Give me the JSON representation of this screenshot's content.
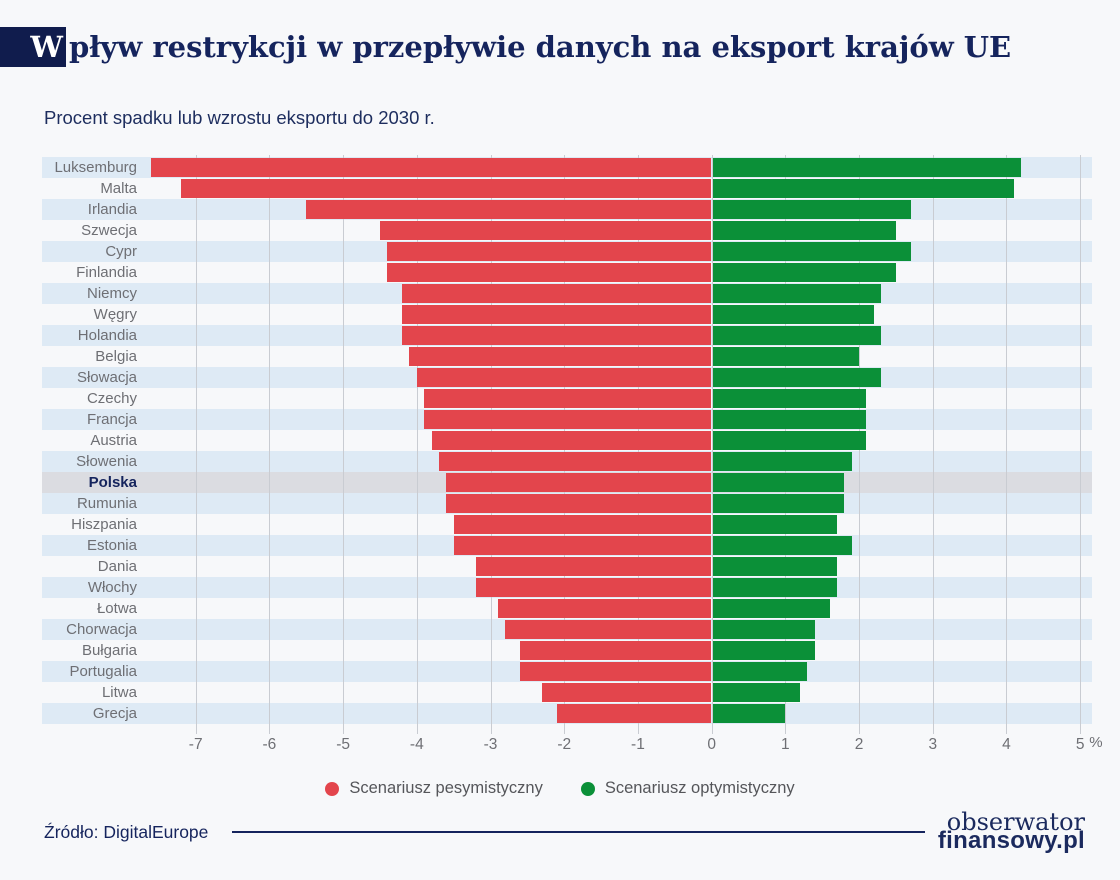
{
  "title": {
    "box_letter": "W",
    "rest": "pływ restrykcji w przepływie danych na eksport krajów UE"
  },
  "subtitle": "Procent spadku lub wzrostu eksportu do 2030 r.",
  "chart_data": {
    "type": "bar",
    "orientation": "horizontal-diverging",
    "title": "Wpływ restrykcji w przepływie danych na eksport krajów UE",
    "subtitle": "Procent spadku lub wzrostu eksportu do 2030 r.",
    "categories": [
      "Luksemburg",
      "Malta",
      "Irlandia",
      "Szwecja",
      "Cypr",
      "Finlandia",
      "Niemcy",
      "Węgry",
      "Holandia",
      "Belgia",
      "Słowacja",
      "Czechy",
      "Francja",
      "Austria",
      "Słowenia",
      "Polska",
      "Rumunia",
      "Hiszpania",
      "Estonia",
      "Dania",
      "Włochy",
      "Łotwa",
      "Chorwacja",
      "Bułgaria",
      "Portugalia",
      "Litwa",
      "Grecja"
    ],
    "series": [
      {
        "name": "Scenariusz pesymistyczny",
        "color": "#e3454c",
        "values": [
          -7.6,
          -7.2,
          -5.5,
          -4.5,
          -4.4,
          -4.4,
          -4.2,
          -4.2,
          -4.2,
          -4.1,
          -4.0,
          -3.9,
          -3.9,
          -3.8,
          -3.7,
          -3.6,
          -3.6,
          -3.5,
          -3.5,
          -3.2,
          -3.2,
          -2.9,
          -2.8,
          -2.6,
          -2.6,
          -2.3,
          -2.1
        ]
      },
      {
        "name": "Scenariusz optymistyczny",
        "color": "#0b9038",
        "values": [
          4.2,
          4.1,
          2.7,
          2.5,
          2.7,
          2.5,
          2.3,
          2.2,
          2.3,
          2.0,
          2.3,
          2.1,
          2.1,
          2.1,
          1.9,
          1.8,
          1.8,
          1.7,
          1.9,
          1.7,
          1.7,
          1.6,
          1.4,
          1.4,
          1.3,
          1.2,
          1.0
        ]
      }
    ],
    "xticks": [
      -7,
      -6,
      -5,
      -4,
      -3,
      -2,
      -1,
      0,
      1,
      2,
      3,
      4,
      5
    ],
    "x_axis_suffix": "%",
    "xlim": [
      -7.62,
      5.16
    ],
    "grid": true,
    "legend_position": "bottom",
    "highlighted_category": "Polska",
    "row_stripe_color": "#deeaf5",
    "highlight_row_color": "#dbdce1"
  },
  "legend": [
    {
      "label": "Scenariusz pesymistyczny",
      "color": "#e3454c"
    },
    {
      "label": "Scenariusz optymistyczny",
      "color": "#0b9038"
    }
  ],
  "footer": {
    "source": "Źródło: DigitalEurope",
    "logo_line1": "obserwator",
    "logo_line2": "finansowy.pl"
  },
  "colors": {
    "accent_navy": "#15245d",
    "pessimistic_red": "#e3454c",
    "optimistic_green": "#0b9038",
    "stripe_blue": "#deeaf5",
    "highlight_gray": "#dbdce1",
    "background": "#f7f8fa"
  }
}
